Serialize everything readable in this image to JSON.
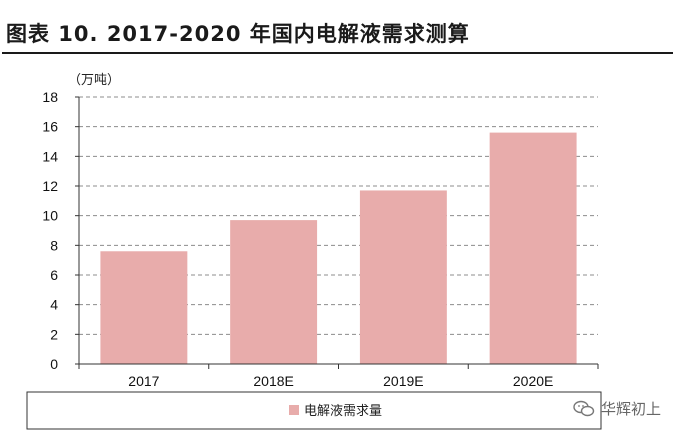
{
  "figure": {
    "title": "图表 10. 2017-2020 年国内电解液需求测算"
  },
  "watermark": {
    "text": "华辉初上",
    "icon": "wechat-icon"
  },
  "chart_data": {
    "type": "bar",
    "unit_label": "（万吨）",
    "categories": [
      "2017",
      "2018E",
      "2019E",
      "2020E"
    ],
    "series": [
      {
        "name": "电解液需求量",
        "values": [
          7.6,
          9.7,
          11.7,
          15.6
        ],
        "color": "#e8acab"
      }
    ],
    "ylim": [
      0,
      18
    ],
    "yticks": [
      0,
      2,
      4,
      6,
      8,
      10,
      12,
      14,
      16,
      18
    ],
    "grid": true,
    "legend_position": "bottom-center"
  }
}
